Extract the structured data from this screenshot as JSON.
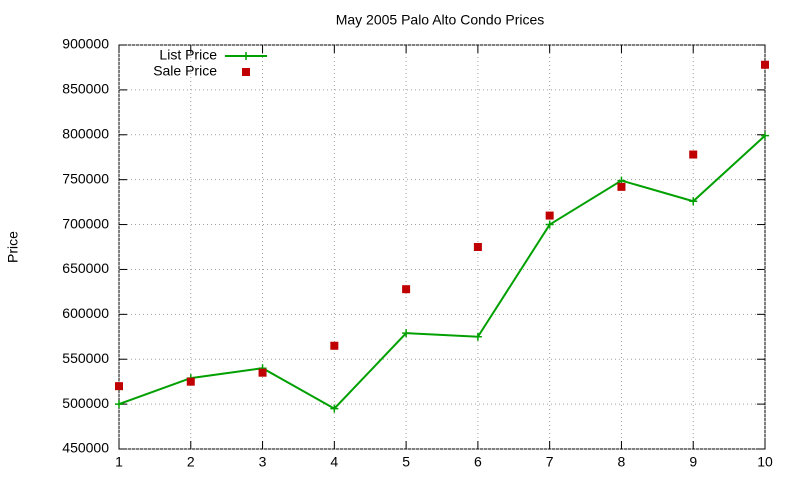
{
  "chart_data": {
    "type": "line",
    "title": "May 2005 Palo Alto Condo Prices",
    "y_label": "Price",
    "x": [
      1,
      2,
      3,
      4,
      5,
      6,
      7,
      8,
      9,
      10
    ],
    "series": [
      {
        "name": "List Price",
        "color": "#00a000",
        "style": "linespoints",
        "values": [
          500000,
          529000,
          540000,
          495000,
          579000,
          575000,
          700000,
          749000,
          726000,
          799000
        ]
      },
      {
        "name": "Sale Price",
        "color": "#c00000",
        "style": "points",
        "values": [
          520000,
          525000,
          535000,
          565000,
          628000,
          675000,
          710000,
          742000,
          778000,
          878000
        ]
      }
    ],
    "xlim": [
      1,
      10
    ],
    "xticks": [
      1,
      2,
      3,
      4,
      5,
      6,
      7,
      8,
      9,
      10
    ],
    "ylim": [
      450000,
      900000
    ],
    "yticks": [
      450000,
      500000,
      550000,
      600000,
      650000,
      700000,
      750000,
      800000,
      850000,
      900000
    ],
    "grid": true,
    "legend": "top-left"
  }
}
